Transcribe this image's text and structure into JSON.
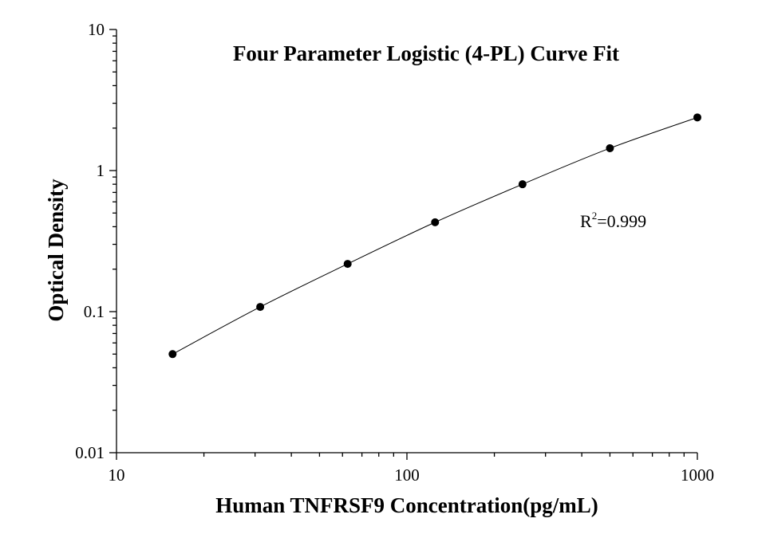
{
  "chart_data": {
    "type": "scatter",
    "title": "Four Parameter Logistic (4-PL) Curve Fit",
    "xlabel": "Human TNFRSF9 Concentration(pg/mL)",
    "ylabel": "Optical Density",
    "xscale": "log",
    "yscale": "log",
    "xlim": [
      10,
      1000
    ],
    "ylim": [
      0.01,
      10
    ],
    "x_ticks": [
      10,
      100,
      1000
    ],
    "x_tick_labels": [
      "10",
      "100",
      "1000"
    ],
    "y_ticks": [
      0.01,
      0.1,
      1,
      10
    ],
    "y_tick_labels": [
      "0.01",
      "0.1",
      "1",
      "10"
    ],
    "grid": false,
    "points": {
      "x": [
        15.6,
        31.25,
        62.5,
        125,
        250,
        500,
        1000
      ],
      "y": [
        0.05,
        0.108,
        0.218,
        0.43,
        0.8,
        1.44,
        2.38
      ]
    },
    "fit_curve": "4-PL",
    "annotation": {
      "base": "R",
      "sup": "2",
      "rest": "=0.999"
    }
  }
}
